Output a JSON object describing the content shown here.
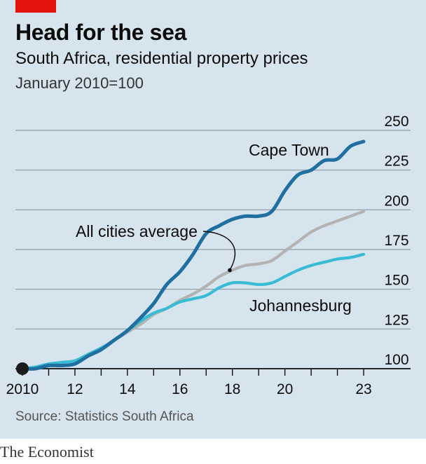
{
  "title": "Head for the sea",
  "subtitle": "South Africa, residential property prices",
  "unit": "January 2010=100",
  "source": "Source: Statistics South Africa",
  "brand": "The Economist",
  "colors": {
    "cape_town": "#1f6fa0",
    "all_cities": "#b3b3b3",
    "johannesburg": "#38bcd6",
    "panel": "#d6e4ee",
    "red_tag": "#e3120b"
  },
  "chart_data": {
    "type": "line",
    "title": "Head for the sea",
    "subtitle": "South Africa, residential property prices",
    "ylabel": "January 2010=100",
    "ylim": [
      100,
      250
    ],
    "xlim": [
      2010,
      2023
    ],
    "y_ticks": [
      100,
      125,
      150,
      175,
      200,
      225,
      250
    ],
    "y_tick_labels": [
      "100",
      "125",
      "150",
      "175",
      "200",
      "225",
      "250"
    ],
    "x_ticks": [
      2010,
      2012,
      2014,
      2016,
      2018,
      2020,
      2023
    ],
    "x_tick_labels": [
      "2010",
      "12",
      "14",
      "16",
      "18",
      "20",
      "23"
    ],
    "grid": true,
    "start_marker": {
      "x": 2010,
      "y": 100
    },
    "series": [
      {
        "name": "Cape Town",
        "x": [
          2010.0,
          2010.5,
          2011.0,
          2011.5,
          2012.0,
          2012.5,
          2013.0,
          2013.5,
          2014.0,
          2014.5,
          2015.0,
          2015.5,
          2016.0,
          2016.5,
          2017.0,
          2017.5,
          2018.0,
          2018.5,
          2019.0,
          2019.5,
          2020.0,
          2020.5,
          2021.0,
          2021.5,
          2022.0,
          2022.5,
          2023.0
        ],
        "values": [
          100,
          100,
          102,
          102,
          103,
          108,
          112,
          118,
          124,
          132,
          141,
          153,
          161,
          172,
          185,
          190,
          194,
          196,
          196,
          199,
          212,
          222,
          225,
          231,
          232,
          240,
          243
        ]
      },
      {
        "name": "All cities average",
        "x": [
          2010.0,
          2010.5,
          2011.0,
          2011.5,
          2012.0,
          2012.5,
          2013.0,
          2013.5,
          2014.0,
          2014.5,
          2015.0,
          2015.5,
          2016.0,
          2016.5,
          2017.0,
          2017.5,
          2018.0,
          2018.5,
          2019.0,
          2019.5,
          2020.0,
          2020.5,
          2021.0,
          2021.5,
          2022.0,
          2022.5,
          2023.0
        ],
        "values": [
          100,
          101,
          103,
          104,
          105,
          109,
          113,
          118,
          123,
          128,
          134,
          138,
          143,
          147,
          152,
          158,
          162,
          165,
          166,
          168,
          174,
          180,
          186,
          190,
          193,
          196,
          199
        ]
      },
      {
        "name": "Johannesburg",
        "x": [
          2010.0,
          2010.5,
          2011.0,
          2011.5,
          2012.0,
          2012.5,
          2013.0,
          2013.5,
          2014.0,
          2014.5,
          2015.0,
          2015.5,
          2016.0,
          2016.5,
          2017.0,
          2017.5,
          2018.0,
          2018.5,
          2019.0,
          2019.5,
          2020.0,
          2020.5,
          2021.0,
          2021.5,
          2022.0,
          2022.5,
          2023.0
        ],
        "values": [
          100,
          101,
          103,
          104,
          105,
          109,
          113,
          118,
          124,
          130,
          135,
          138,
          142,
          144,
          146,
          151,
          154,
          154,
          153,
          154,
          158,
          162,
          165,
          167,
          169,
          170,
          172
        ]
      }
    ],
    "annotations": [
      {
        "text": "Cape Town",
        "series": "Cape Town"
      },
      {
        "text": "All cities average",
        "series": "All cities average",
        "pointer": {
          "x": 2017.9,
          "y": 162
        }
      },
      {
        "text": "Johannesburg",
        "series": "Johannesburg"
      }
    ]
  }
}
